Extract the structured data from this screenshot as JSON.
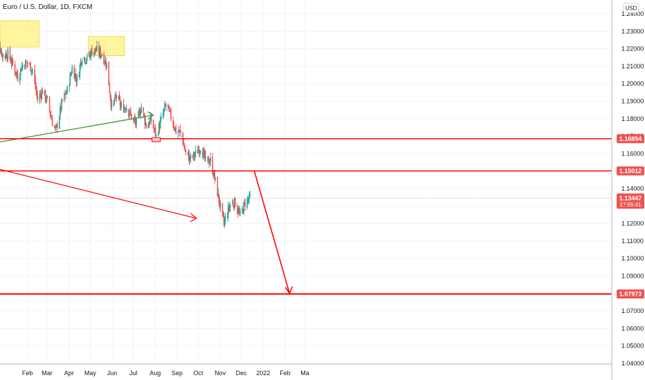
{
  "header": {
    "title": "Euro / U.S. Dollar, 1D, FXCM"
  },
  "currency_button": "USD",
  "colors": {
    "up": "#26a69a",
    "down": "#ef5350",
    "level": "#ff0000",
    "trend_green": "#4a9a4a",
    "zone": "#fff176",
    "grid": "#f0f3fa",
    "axis_text": "#131722",
    "price_badge": "#ef5350"
  },
  "chart_data": {
    "type": "candlestick",
    "title": "Euro / U.S. Dollar, 1D, FXCM",
    "ylim": [
      1.04,
      1.245
    ],
    "y_ticks": [
      "1.24000",
      "1.23000",
      "1.22000",
      "1.21000",
      "1.20000",
      "1.19000",
      "1.18000",
      "1.17000",
      "1.16000",
      "1.15000",
      "1.14000",
      "1.13000",
      "1.12000",
      "1.11000",
      "1.10000",
      "1.09000",
      "1.08000",
      "1.07000",
      "1.06000",
      "1.05000",
      "1.04000"
    ],
    "x_ticks": [
      "Feb",
      "Mar",
      "Apr",
      "May",
      "Jun",
      "Jul",
      "Aug",
      "Sep",
      "Oct",
      "Nov",
      "Dec",
      "2022",
      "Feb",
      "Ma"
    ],
    "price_path": [
      [
        "2021-01-01",
        1.228
      ],
      [
        "2021-01-08",
        1.223
      ],
      [
        "2021-01-15",
        1.216
      ],
      [
        "2021-01-22",
        1.217
      ],
      [
        "2021-01-29",
        1.211
      ],
      [
        "2021-02-05",
        1.204
      ],
      [
        "2021-02-12",
        1.211
      ],
      [
        "2021-02-19",
        1.212
      ],
      [
        "2021-02-26",
        1.208
      ],
      [
        "2021-03-05",
        1.191
      ],
      [
        "2021-03-12",
        1.196
      ],
      [
        "2021-03-19",
        1.19
      ],
      [
        "2021-03-26",
        1.178
      ],
      [
        "2021-03-31",
        1.173
      ],
      [
        "2021-04-09",
        1.19
      ],
      [
        "2021-04-16",
        1.196
      ],
      [
        "2021-04-23",
        1.209
      ],
      [
        "2021-04-30",
        1.202
      ],
      [
        "2021-05-07",
        1.216
      ],
      [
        "2021-05-14",
        1.214
      ],
      [
        "2021-05-21",
        1.219
      ],
      [
        "2021-05-28",
        1.219
      ],
      [
        "2021-06-04",
        1.217
      ],
      [
        "2021-06-11",
        1.211
      ],
      [
        "2021-06-18",
        1.186
      ],
      [
        "2021-06-25",
        1.193
      ],
      [
        "2021-07-02",
        1.186
      ],
      [
        "2021-07-09",
        1.187
      ],
      [
        "2021-07-16",
        1.181
      ],
      [
        "2021-07-23",
        1.177
      ],
      [
        "2021-07-30",
        1.187
      ],
      [
        "2021-08-06",
        1.176
      ],
      [
        "2021-08-13",
        1.179
      ],
      [
        "2021-08-20",
        1.17
      ],
      [
        "2021-08-27",
        1.179
      ],
      [
        "2021-09-03",
        1.188
      ],
      [
        "2021-09-10",
        1.181
      ],
      [
        "2021-09-17",
        1.173
      ],
      [
        "2021-09-24",
        1.172
      ],
      [
        "2021-10-01",
        1.16
      ],
      [
        "2021-10-08",
        1.157
      ],
      [
        "2021-10-15",
        1.16
      ],
      [
        "2021-10-22",
        1.164
      ],
      [
        "2021-10-29",
        1.156
      ],
      [
        "2021-11-05",
        1.156
      ],
      [
        "2021-11-12",
        1.144
      ],
      [
        "2021-11-19",
        1.129
      ],
      [
        "2021-11-24",
        1.12
      ],
      [
        "2021-12-03",
        1.131
      ],
      [
        "2021-12-10",
        1.132
      ],
      [
        "2021-12-17",
        1.124
      ],
      [
        "2021-12-24",
        1.132
      ],
      [
        "2021-12-31",
        1.1345
      ]
    ],
    "horizontal_levels": [
      {
        "price": 1.16854,
        "label": "1.16854"
      },
      {
        "price": 1.15012,
        "label": "1.15012"
      },
      {
        "price": 1.07973,
        "label": "1.07973"
      }
    ],
    "current_price": {
      "label": "1.13447",
      "countdown": "17:55:41",
      "price": 1.13447
    },
    "annotations": {
      "zones": [
        {
          "from": "2021-01-01",
          "to": "2021-03-07",
          "y_low": 1.221,
          "y_high": 1.236
        },
        {
          "from": "2021-05-16",
          "to": "2021-07-06",
          "y_low": 1.216,
          "y_high": 1.227
        }
      ],
      "trendline_green": {
        "from": [
          "2021-01-01",
          1.166
        ],
        "to": [
          "2021-08-16",
          1.182
        ]
      },
      "trendline_red": {
        "from": [
          "2021-01-01",
          1.152
        ],
        "to": [
          "2021-10-16",
          1.123
        ]
      },
      "projection_red": {
        "from": [
          "2022-01-06",
          1.15012
        ],
        "to": [
          "2022-02-25",
          1.08
        ]
      },
      "small_box": {
        "date": "2021-08-20",
        "price": 1.168
      }
    }
  }
}
